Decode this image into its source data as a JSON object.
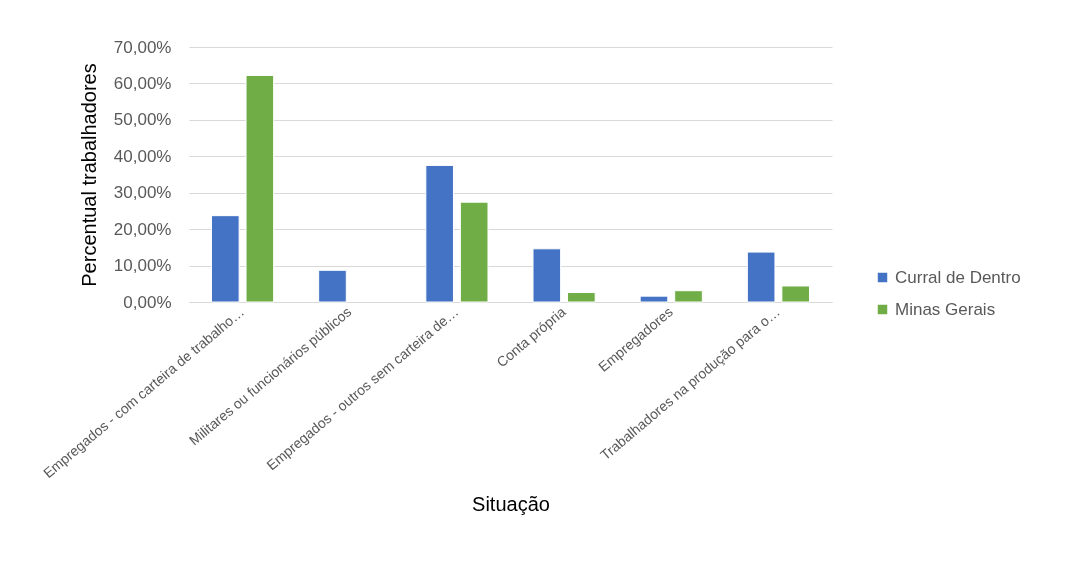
{
  "chart_data": {
    "type": "bar",
    "xlabel": "Situação",
    "ylabel": "Percentual trabalhadores",
    "categories": [
      "Empregados - com carteira de trabalho…",
      "Militares ou funcionários públicos",
      "Empregados - outros sem carteira de…",
      "Conta própria",
      "Empregadores",
      "Trabalhadores na produção para o…"
    ],
    "series": [
      {
        "name": "Curral de Dentro",
        "color": "#4472c4",
        "values": [
          23.7,
          8.7,
          37.5,
          14.6,
          1.6,
          13.7
        ]
      },
      {
        "name": "Minas Gerais",
        "color": "#70ad47",
        "values": [
          62.2,
          null,
          27.4,
          2.6,
          3.1,
          4.4
        ]
      }
    ],
    "ylim": [
      0,
      70
    ],
    "yticks": [
      {
        "value": 0,
        "label": "0,00%"
      },
      {
        "value": 10,
        "label": "10,00%"
      },
      {
        "value": 20,
        "label": "20,00%"
      },
      {
        "value": 30,
        "label": "30,00%"
      },
      {
        "value": 40,
        "label": "40,00%"
      },
      {
        "value": 50,
        "label": "50,00%"
      },
      {
        "value": 60,
        "label": "60,00%"
      },
      {
        "value": 70,
        "label": "70,00%"
      }
    ],
    "grid": "y",
    "legend": "right"
  }
}
